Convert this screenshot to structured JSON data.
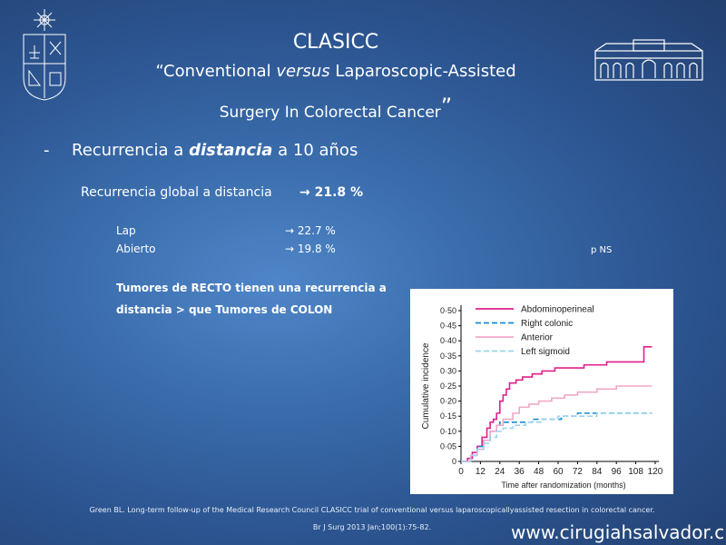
{
  "slide": {
    "title": "CLASICC",
    "subtitle": {
      "line1_prefix": "“Conventional ",
      "line1_italic": "versus",
      "line1_suffix": " Laparoscopic-Assisted",
      "line2": "Surgery In Colorectal Cancer",
      "line2_close": "”"
    },
    "bullet": {
      "dash": "-",
      "prefix": "Recurrencia a ",
      "emphasis": "distancia",
      "suffix": " a 10 años"
    },
    "global": {
      "label": "Recurrencia global a distancia",
      "value": "→ 21.8 %"
    },
    "rows": [
      {
        "label": "Lap",
        "value": "→ 22.7 %"
      },
      {
        "label": "Abierto",
        "value": "→ 19.8 %"
      }
    ],
    "p_value": "p NS",
    "tumor_note": "Tumores de RECTO tienen una recurrencia a distancia > que Tumores de COLON",
    "footnote_line1": "Green BL. Long-term follow-up of the Medical Research Council CLASICC trial of conventional versus laparoscopicallyassisted resection in colorectal cancer.",
    "footnote_line2": "Br J Surg 2013 Jan;100(1):75-82.",
    "website": "www.cirugiahsalvador.cl"
  },
  "chart_data": {
    "type": "line",
    "xlabel": "Time after randomization (months)",
    "ylabel": "Cumulative incidence",
    "x_ticks": [
      0,
      12,
      24,
      36,
      48,
      60,
      72,
      84,
      96,
      108,
      120
    ],
    "y_ticks": [
      "0",
      "0·05",
      "0·10",
      "0·15",
      "0·20",
      "0·25",
      "0·30",
      "0·35",
      "0·40",
      "0·45",
      "0·50"
    ],
    "xlim": [
      0,
      120
    ],
    "ylim": [
      0,
      0.5
    ],
    "legend_position": "top",
    "series": [
      {
        "name": "Abdominoperineal",
        "color": "#e0208c",
        "dash": "solid",
        "points": [
          [
            0,
            0
          ],
          [
            4,
            0.01
          ],
          [
            7,
            0.03
          ],
          [
            10,
            0.05
          ],
          [
            13,
            0.08
          ],
          [
            16,
            0.11
          ],
          [
            18,
            0.13
          ],
          [
            20,
            0.14
          ],
          [
            22,
            0.16
          ],
          [
            24,
            0.2
          ],
          [
            26,
            0.22
          ],
          [
            28,
            0.24
          ],
          [
            30,
            0.26
          ],
          [
            34,
            0.27
          ],
          [
            38,
            0.28
          ],
          [
            44,
            0.29
          ],
          [
            50,
            0.3
          ],
          [
            58,
            0.31
          ],
          [
            70,
            0.31
          ],
          [
            76,
            0.32
          ],
          [
            84,
            0.32
          ],
          [
            90,
            0.33
          ],
          [
            110,
            0.33
          ],
          [
            113,
            0.38
          ],
          [
            118,
            0.38
          ]
        ]
      },
      {
        "name": "Right colonic",
        "color": "#1b8ad0",
        "dash": "6,3",
        "points": [
          [
            0,
            0
          ],
          [
            6,
            0.02
          ],
          [
            10,
            0.05
          ],
          [
            14,
            0.07
          ],
          [
            18,
            0.1
          ],
          [
            22,
            0.12
          ],
          [
            24,
            0.13
          ],
          [
            36,
            0.13
          ],
          [
            44,
            0.14
          ],
          [
            56,
            0.14
          ],
          [
            62,
            0.15
          ],
          [
            72,
            0.16
          ],
          [
            78,
            0.16
          ],
          [
            90,
            0.16
          ],
          [
            100,
            0.16
          ],
          [
            118,
            0.16
          ]
        ]
      },
      {
        "name": "Anterior",
        "color": "#f0a8c8",
        "dash": "solid",
        "points": [
          [
            0,
            0
          ],
          [
            6,
            0.02
          ],
          [
            10,
            0.04
          ],
          [
            14,
            0.07
          ],
          [
            18,
            0.1
          ],
          [
            22,
            0.12
          ],
          [
            26,
            0.14
          ],
          [
            32,
            0.16
          ],
          [
            36,
            0.18
          ],
          [
            42,
            0.19
          ],
          [
            48,
            0.2
          ],
          [
            56,
            0.21
          ],
          [
            64,
            0.22
          ],
          [
            72,
            0.23
          ],
          [
            84,
            0.24
          ],
          [
            96,
            0.25
          ],
          [
            118,
            0.25
          ]
        ]
      },
      {
        "name": "Left sigmoid",
        "color": "#9fd3ee",
        "dash": "6,3",
        "points": [
          [
            0,
            0
          ],
          [
            6,
            0.02
          ],
          [
            10,
            0.04
          ],
          [
            14,
            0.06
          ],
          [
            18,
            0.08
          ],
          [
            22,
            0.1
          ],
          [
            26,
            0.11
          ],
          [
            32,
            0.12
          ],
          [
            40,
            0.13
          ],
          [
            50,
            0.14
          ],
          [
            60,
            0.15
          ],
          [
            72,
            0.15
          ],
          [
            84,
            0.16
          ],
          [
            100,
            0.16
          ],
          [
            118,
            0.16
          ]
        ]
      }
    ]
  }
}
